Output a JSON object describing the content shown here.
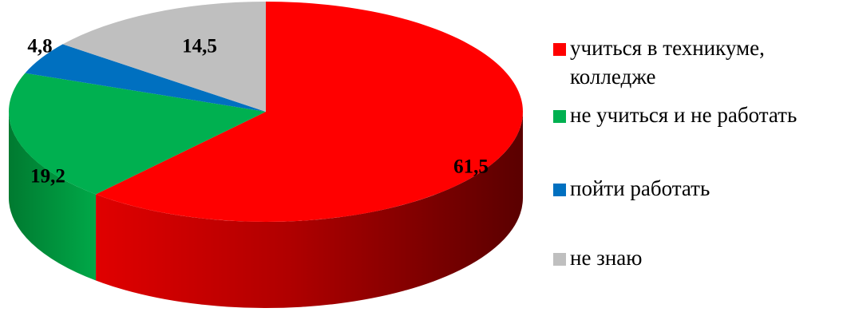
{
  "chart_data": {
    "type": "pie",
    "style": "3d",
    "title": "",
    "series": [
      {
        "values": [
          61.5,
          19.2,
          4.8,
          14.5
        ],
        "labels": [
          "61,5",
          "19,2",
          "4,8",
          "14,5"
        ]
      }
    ],
    "categories": [
      "учиться в техникуме, колледже",
      "не учиться и не работать",
      "пойти работать",
      "не знаю"
    ],
    "legend": {
      "position": "right",
      "items": [
        {
          "lines": [
            "учиться в техникуме,",
            "колледже"
          ],
          "color": "#ff0000"
        },
        {
          "lines": [
            "не учиться и не работать"
          ],
          "color": "#00b050"
        },
        {
          "lines": [
            "пойти работать"
          ],
          "color": "#0070c0"
        },
        {
          "lines": [
            "не знаю"
          ],
          "color": "#bfbfbf"
        }
      ]
    },
    "colors": [
      "#ff0000",
      "#00b050",
      "#0070c0",
      "#bfbfbf"
    ],
    "side_colors": [
      "#a00000",
      "#009040",
      "#00509a",
      "#9a9a9a"
    ]
  }
}
